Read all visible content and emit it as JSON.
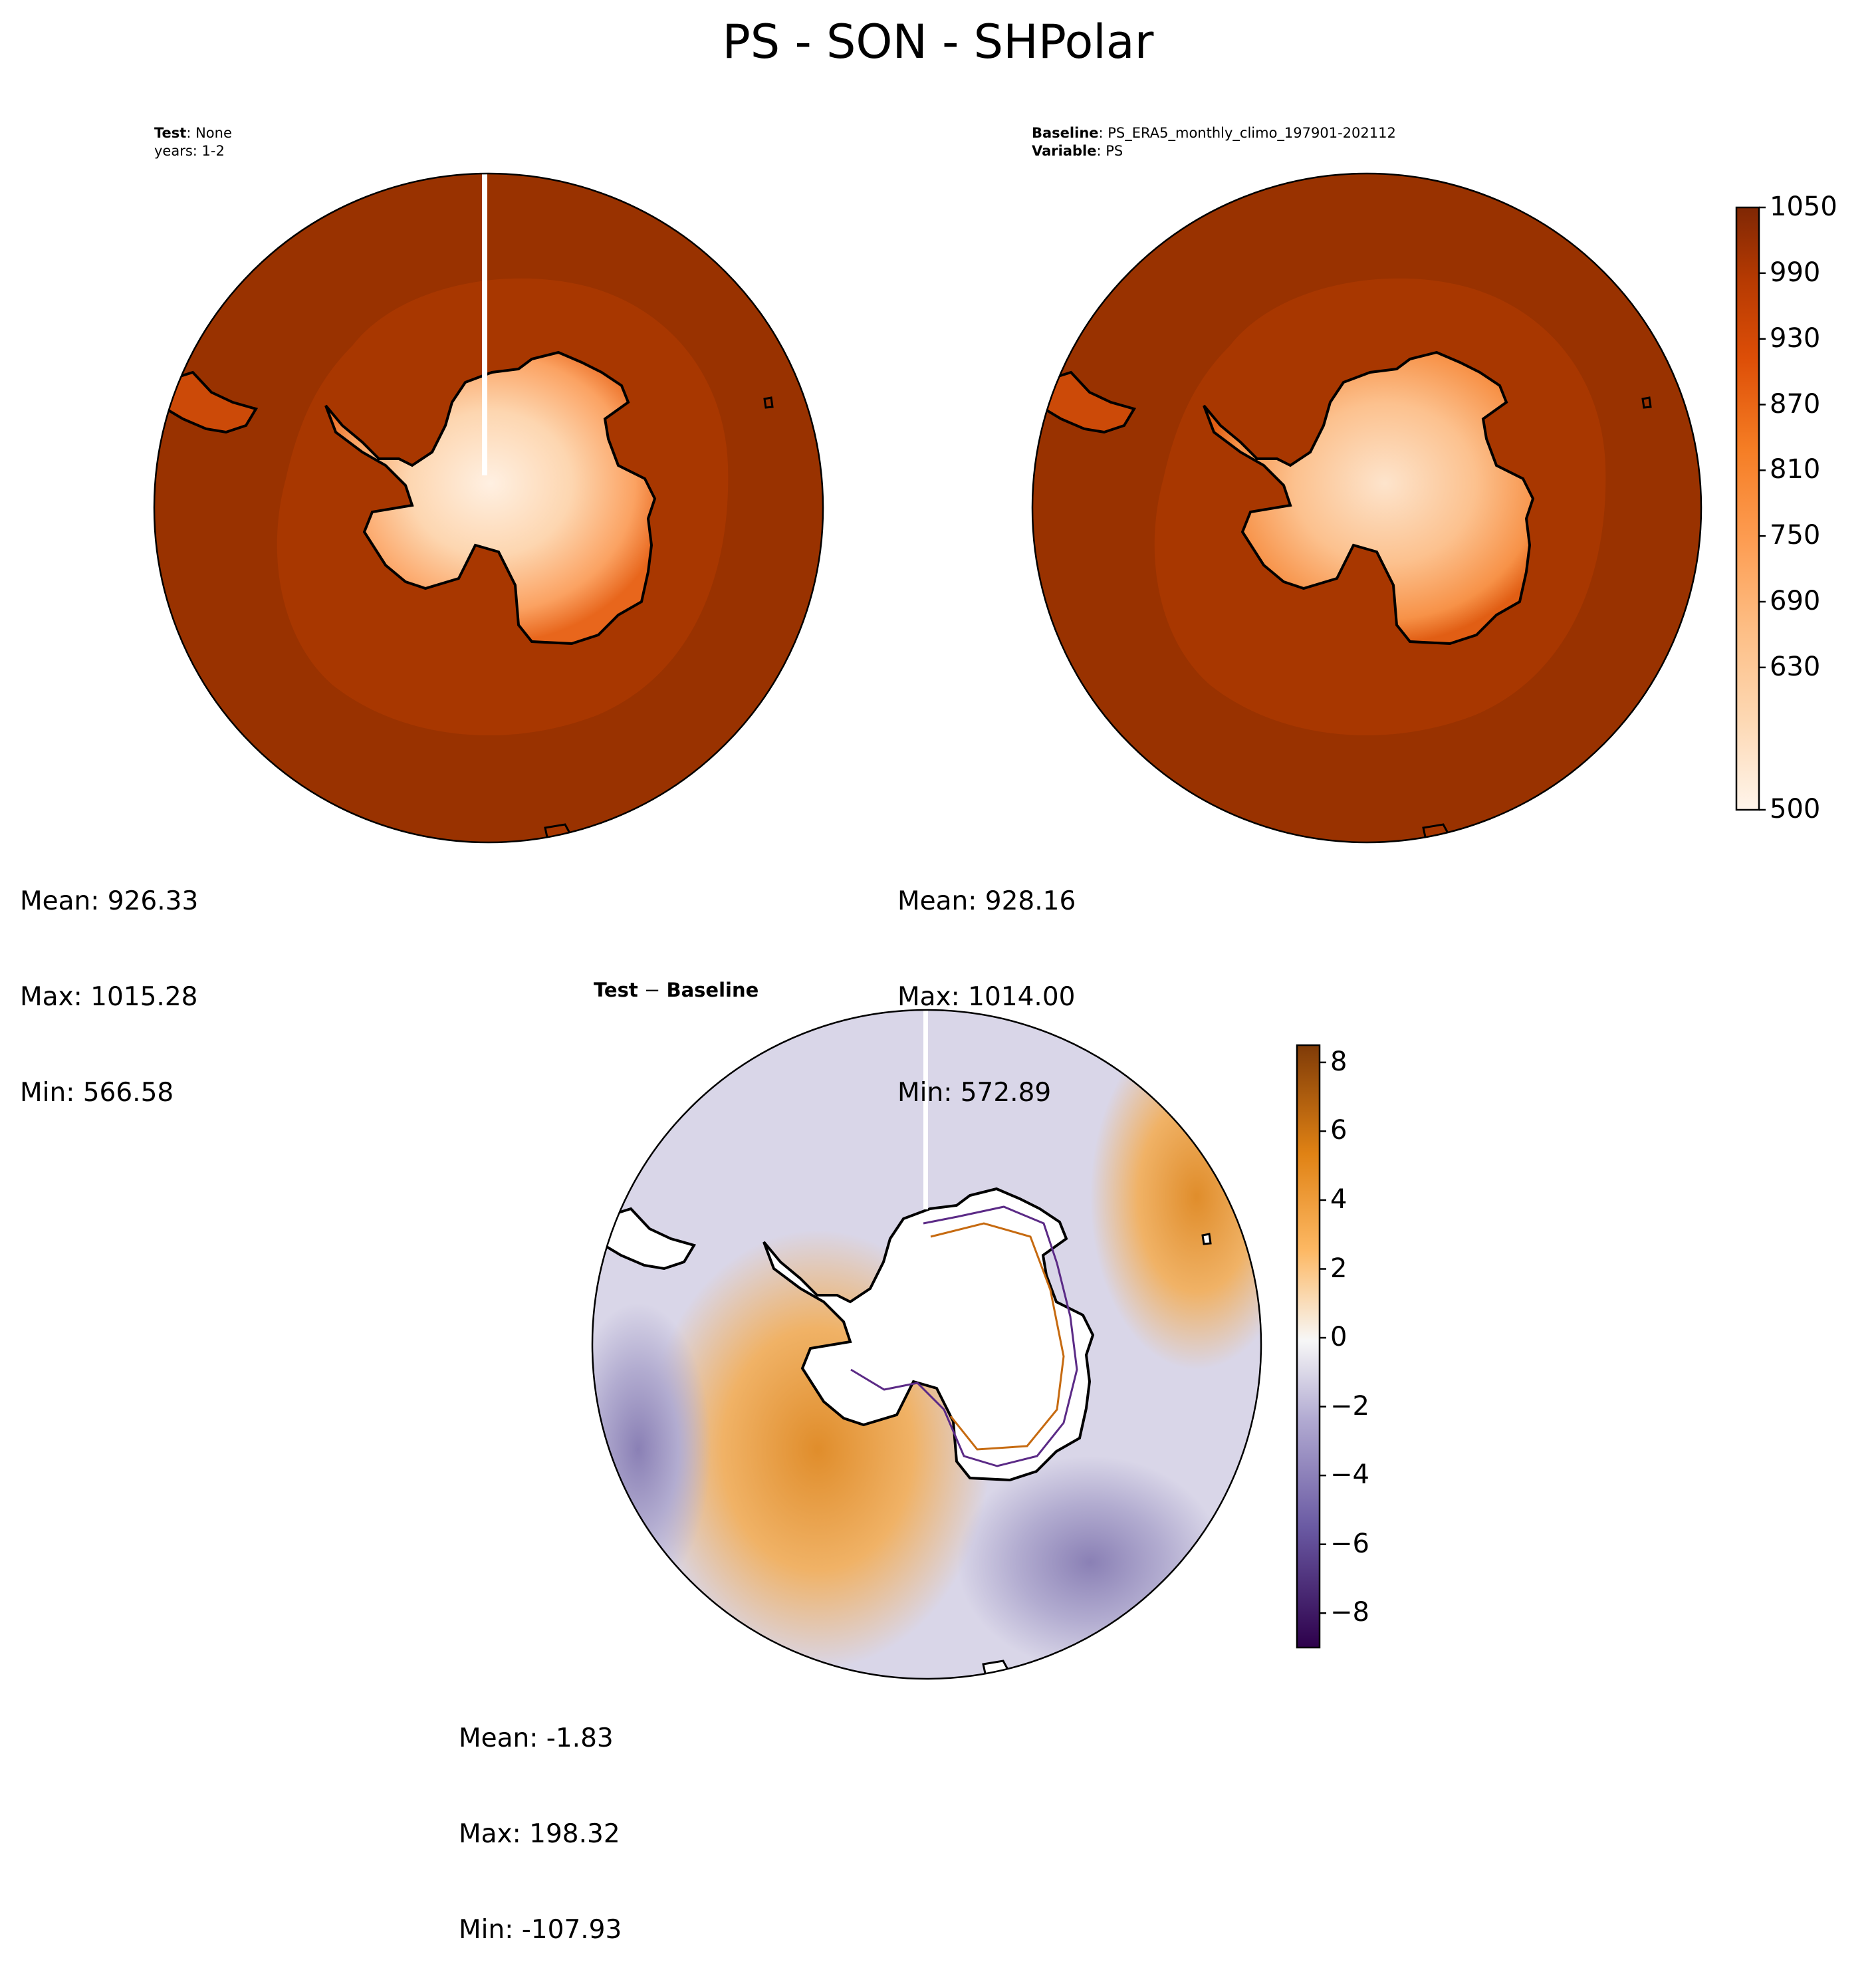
{
  "title": "PS - SON - SHPolar",
  "panels": {
    "test": {
      "label_bold": "Test",
      "label_value": ": None",
      "line2": "years: 1-2",
      "stats": {
        "mean": "Mean: 926.33",
        "max": "Max: 1015.28",
        "min": "Min: 566.58"
      }
    },
    "baseline": {
      "label_bold": "Baseline",
      "label_value": ": PS_ERA5_monthly_climo_197901-202112",
      "var_bold": "Variable",
      "var_value": ": PS",
      "stats": {
        "mean": "Mean: 928.16",
        "max": "Max: 1014.00",
        "min": "Min: 572.89"
      }
    },
    "difference": {
      "title_a": "Test",
      "title_op": " − ",
      "title_b": "Baseline",
      "stats": {
        "mean": "Mean: -1.83",
        "max": "Max: 198.32",
        "min": "Min: -107.93"
      }
    }
  },
  "colorbars": {
    "field": {
      "ticks": [
        "1050",
        "990",
        "930",
        "870",
        "810",
        "750",
        "690",
        "630",
        "500"
      ],
      "colormap": "Oranges",
      "range": [
        500,
        1050
      ]
    },
    "diff": {
      "ticks": [
        "8",
        "6",
        "4",
        "2",
        "0",
        "−2",
        "−4",
        "−6",
        "−8"
      ],
      "colormap": "PuOr_r",
      "range": [
        -9,
        8.5
      ]
    }
  },
  "colors": {
    "ocean_high": "#993200",
    "ring_mid": "#a73600",
    "plateau": "#fde4cc",
    "diff_orange": "#e49a3c",
    "diff_purple": "#8e84b8",
    "coast": "#000000"
  }
}
